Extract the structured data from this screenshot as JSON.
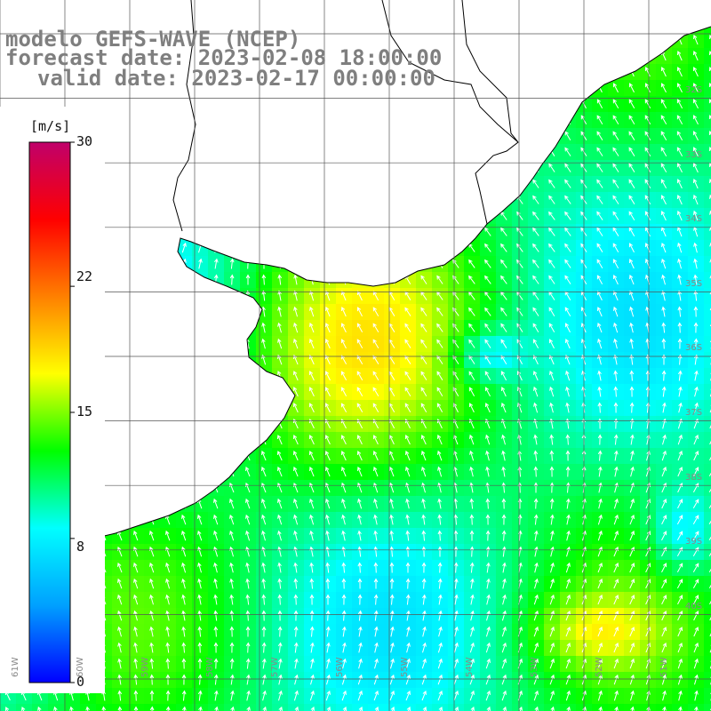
{
  "title": {
    "line1": "modelo GEFS-WAVE (NCEP)",
    "line2": "forecast date: 2023-02-08 18:00:00",
    "line3": "valid date: 2023-02-17 00:00:00"
  },
  "colorbar": {
    "unit": "[m/s]",
    "ticks": [
      "30",
      "22",
      "15",
      "8",
      "0"
    ],
    "tick_values": [
      30,
      22,
      15,
      8,
      0
    ],
    "min": 0,
    "max": 30,
    "colors": [
      "#0000ff",
      "#00a0ff",
      "#00ffff",
      "#00ff00",
      "#ffff00",
      "#ff8000",
      "#ff0000",
      "#c0006a"
    ]
  },
  "map": {
    "longitude_labels": [
      "61W",
      "60W",
      "59W",
      "58W",
      "57W",
      "56W",
      "55W",
      "54W",
      "53W",
      "52W",
      "51W"
    ],
    "latitude_labels": [
      "32S",
      "33S",
      "34S",
      "35S",
      "36S",
      "37S",
      "38S",
      "39S",
      "40S"
    ],
    "land_color": "#ffffff",
    "coastline_color": "#000000",
    "grid_color": "#555555",
    "arrow_color": "#ffffff"
  }
}
